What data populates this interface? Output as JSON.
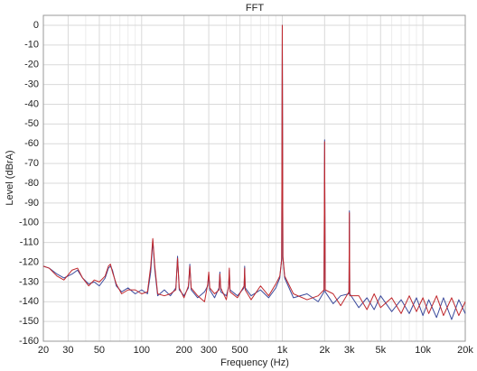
{
  "chart_data": {
    "type": "line",
    "title": "FFT",
    "xlabel": "Frequency (Hz)",
    "ylabel": "Level (dBrA)",
    "xscale": "log",
    "grid": true,
    "xlim": [
      20,
      20000
    ],
    "ylim": [
      -160,
      5
    ],
    "xticks": [
      20,
      30,
      50,
      100,
      200,
      300,
      500,
      {
        "value": 1000,
        "label": "1k"
      },
      {
        "value": 2000,
        "label": "2k"
      },
      {
        "value": 3000,
        "label": "3k"
      },
      {
        "value": 5000,
        "label": "5k"
      },
      {
        "value": 10000,
        "label": "10k"
      },
      {
        "value": 20000,
        "label": "20k"
      }
    ],
    "xminorticks": [
      40,
      60,
      70,
      80,
      90,
      400,
      600,
      700,
      800,
      900,
      4000,
      6000,
      7000,
      8000,
      9000
    ],
    "yticks": [
      0,
      -10,
      -20,
      -30,
      -40,
      -50,
      -60,
      -70,
      -80,
      -90,
      -100,
      -110,
      -120,
      -130,
      -140,
      -150,
      -160
    ],
    "x": [
      20,
      22,
      25,
      28,
      32,
      35,
      38,
      42,
      46,
      50,
      55,
      58,
      60,
      62,
      66,
      72,
      80,
      90,
      100,
      110,
      116,
      120,
      124,
      130,
      145,
      160,
      175,
      180,
      185,
      200,
      215,
      220,
      225,
      250,
      280,
      295,
      300,
      305,
      330,
      355,
      360,
      365,
      400,
      415,
      420,
      425,
      480,
      535,
      540,
      545,
      600,
      700,
      800,
      900,
      960,
      990,
      1000,
      1010,
      1040,
      1200,
      1500,
      1800,
      1980,
      2000,
      2020,
      2300,
      2600,
      2980,
      3000,
      3020,
      3500,
      4000,
      4500,
      5000,
      6000,
      7000,
      8000,
      9000,
      10000,
      11000,
      12500,
      14000,
      16000,
      18000,
      20000
    ],
    "series": [
      {
        "color": "#3b4a9c",
        "values": [
          -122,
          -123,
          -126,
          -128,
          -126,
          -124,
          -128,
          -131,
          -130,
          -132,
          -128,
          -123,
          -122,
          -124,
          -132,
          -135,
          -133,
          -136,
          -134,
          -136,
          -125,
          -109,
          -124,
          -137,
          -134,
          -137,
          -133,
          -117,
          -134,
          -137,
          -133,
          -121,
          -134,
          -138,
          -135,
          -132,
          -126,
          -134,
          -138,
          -133,
          -125,
          -135,
          -137,
          -133,
          -124,
          -134,
          -137,
          -133,
          -122,
          -133,
          -137,
          -134,
          -138,
          -133,
          -128,
          -118,
          0,
          -118,
          -128,
          -138,
          -136,
          -140,
          -135,
          -58,
          -135,
          -141,
          -137,
          -136,
          -94,
          -136,
          -143,
          -138,
          -144,
          -137,
          -145,
          -139,
          -146,
          -138,
          -147,
          -139,
          -148,
          -138,
          -149,
          -139,
          -146
        ]
      },
      {
        "color": "#c0282d",
        "values": [
          -122,
          -123,
          -127,
          -129,
          -124,
          -123,
          -128,
          -132,
          -129,
          -130,
          -127,
          -122,
          -121,
          -125,
          -131,
          -136,
          -134,
          -134,
          -136,
          -135,
          -122,
          -108,
          -122,
          -136,
          -137,
          -136,
          -134,
          -118,
          -133,
          -138,
          -132,
          -122,
          -133,
          -137,
          -140,
          -131,
          -125,
          -133,
          -136,
          -134,
          -126,
          -133,
          -139,
          -132,
          -123,
          -135,
          -138,
          -132,
          -123,
          -134,
          -139,
          -132,
          -137,
          -131,
          -127,
          -119,
          0,
          -117,
          -127,
          -136,
          -139,
          -137,
          -134,
          -59,
          -134,
          -136,
          -142,
          -135,
          -95,
          -137,
          -137,
          -144,
          -136,
          -143,
          -138,
          -146,
          -137,
          -145,
          -138,
          -146,
          -137,
          -147,
          -138,
          -147,
          -140
        ]
      }
    ]
  }
}
